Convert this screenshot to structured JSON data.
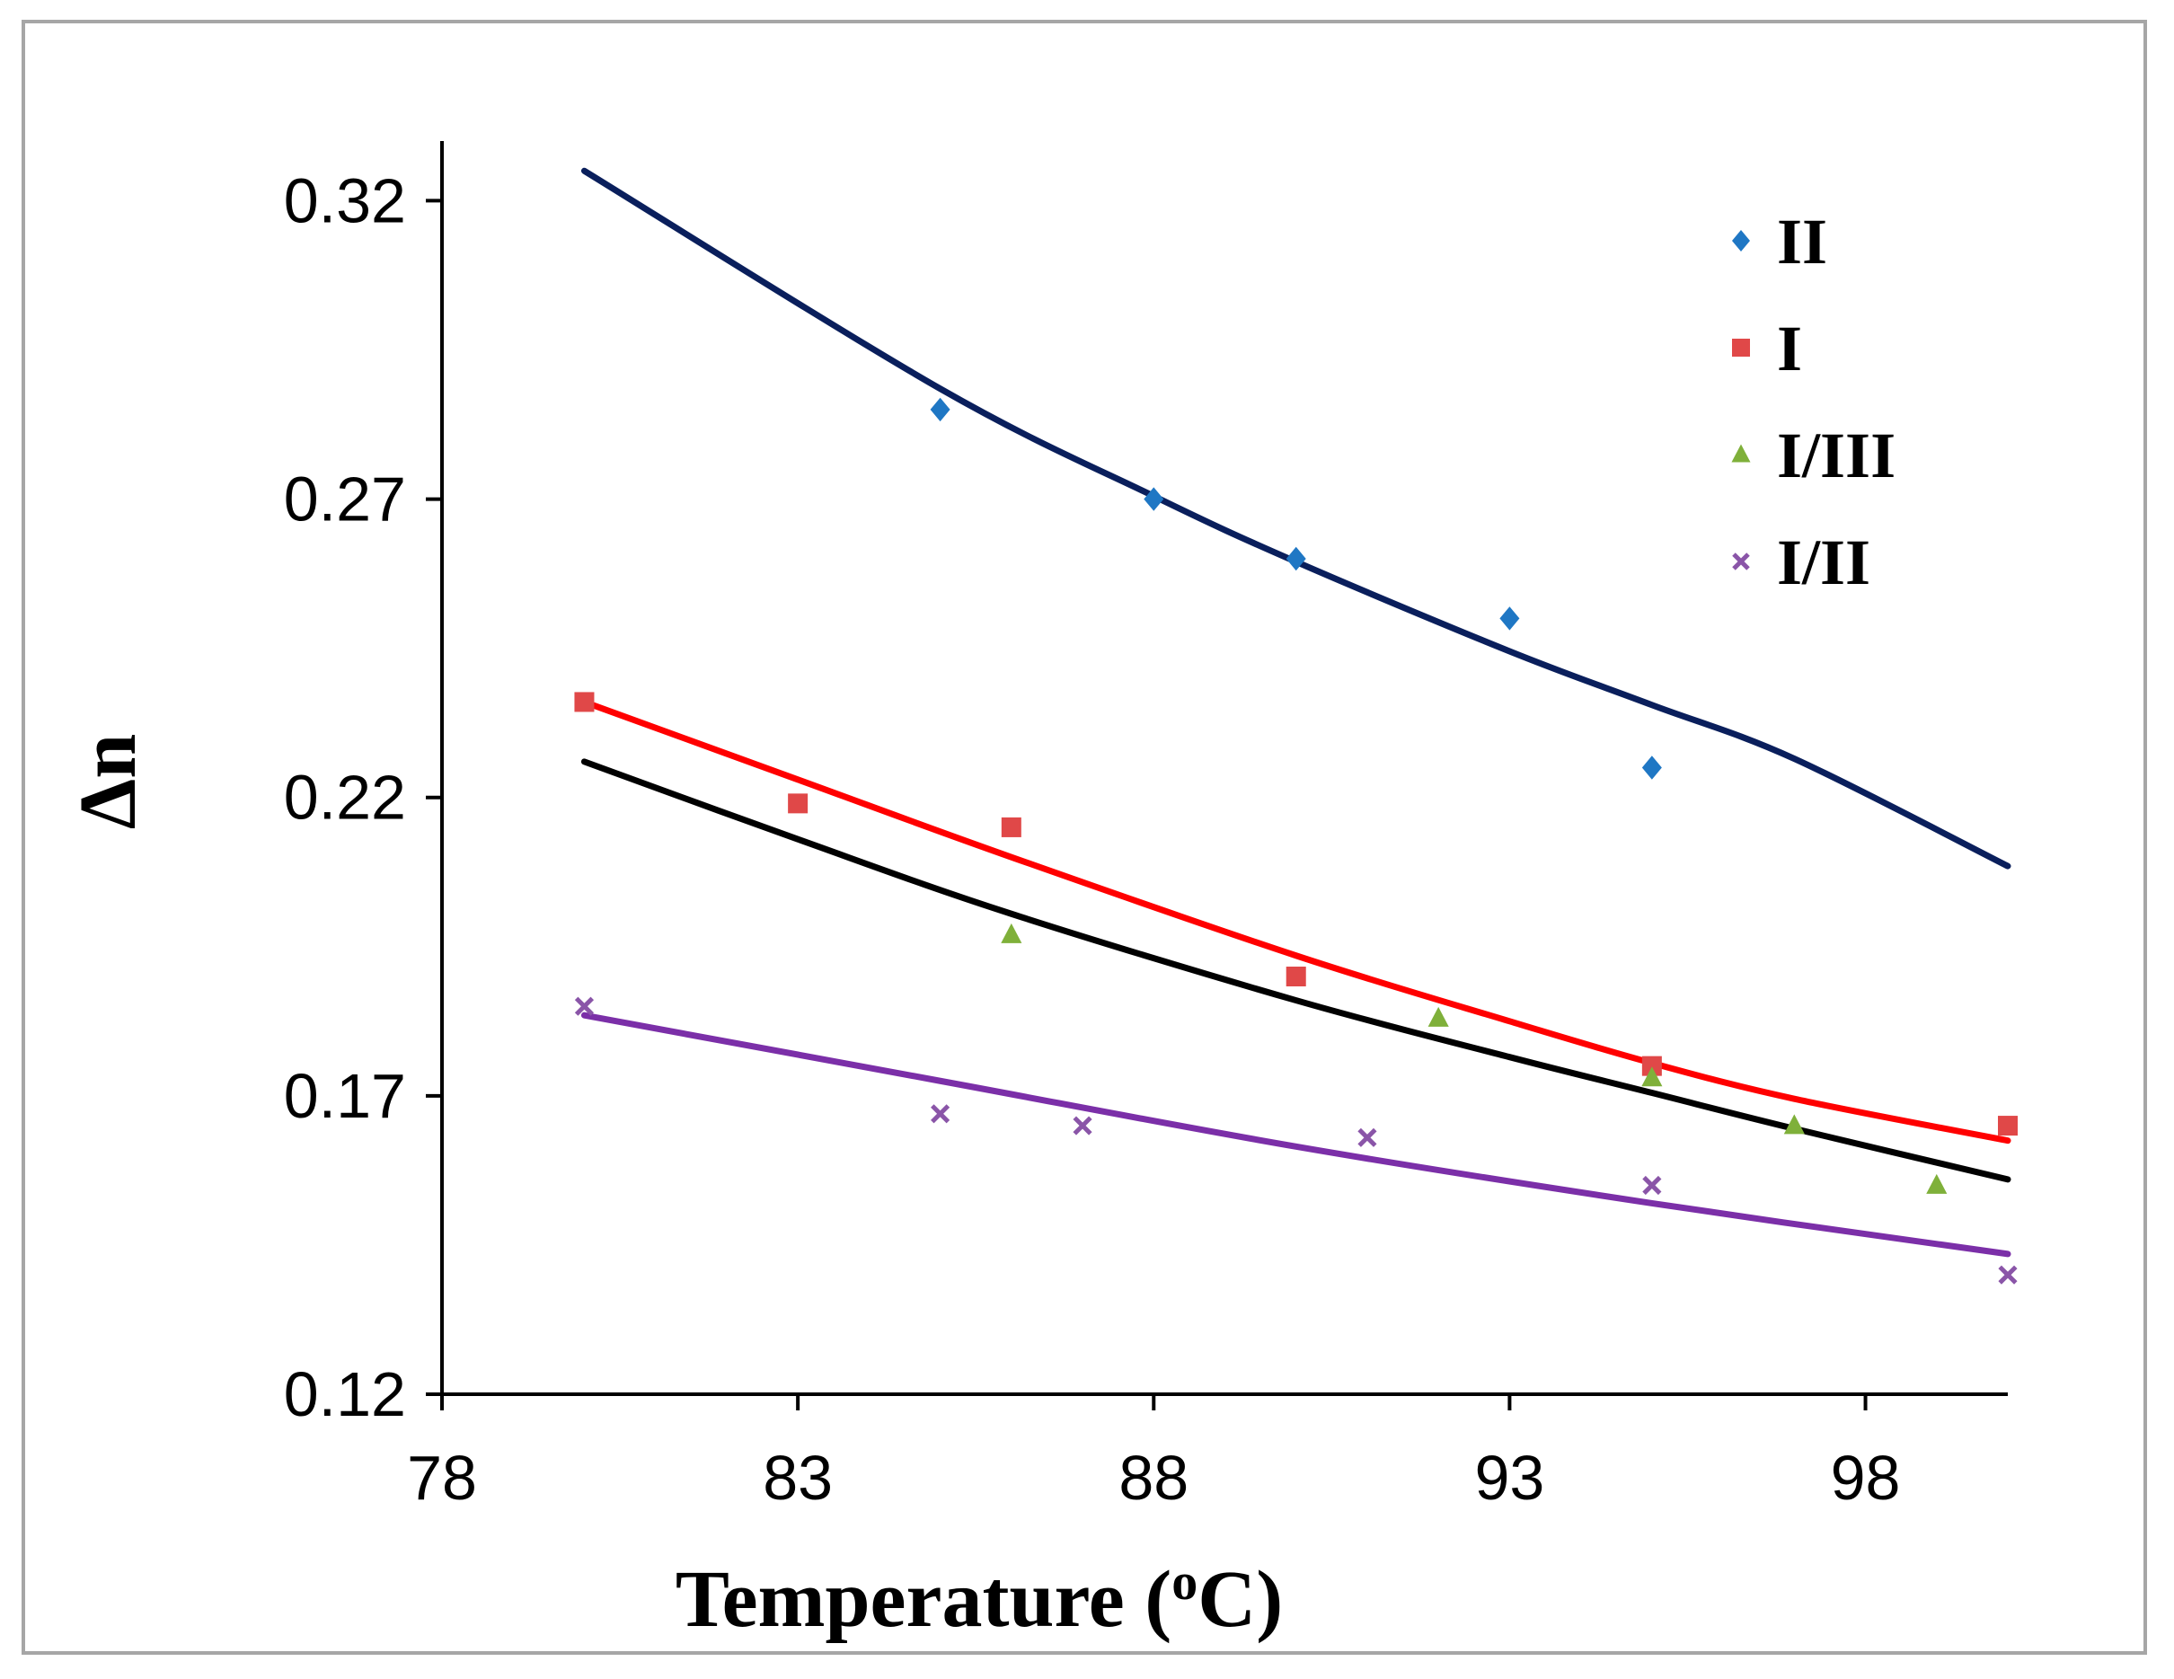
{
  "chart_data": {
    "type": "scatter",
    "title": "",
    "xlabel": "Temperature (",
    "xlabel_superscript": "o",
    "xlabel_suffix": "C)",
    "ylabel": "Δn",
    "xlim": [
      78,
      100
    ],
    "ylim": [
      0.12,
      0.33
    ],
    "xticks": [
      78,
      83,
      88,
      93,
      98
    ],
    "xtick_labels": [
      "78",
      "83",
      "88",
      "93",
      "98"
    ],
    "yticks": [
      0.12,
      0.17,
      0.22,
      0.27,
      0.32
    ],
    "ytick_labels": [
      "0.12",
      "0.17",
      "0.22",
      "0.27",
      "0.32"
    ],
    "grid": false,
    "legend_position": "top-right",
    "series": [
      {
        "name": "II",
        "marker": "diamond",
        "color": "#1f77c4",
        "points": [
          [
            85,
            0.285
          ],
          [
            88,
            0.27
          ],
          [
            90,
            0.26
          ],
          [
            93,
            0.25
          ],
          [
            95,
            0.225
          ]
        ],
        "fit": {
          "color": "#0a1f5c",
          "x": [
            80,
            85,
            88,
            90,
            93,
            95,
            97,
            100
          ],
          "y": [
            0.325,
            0.2885,
            0.2705,
            0.2595,
            0.2445,
            0.2355,
            0.2265,
            0.2085
          ]
        }
      },
      {
        "name": "I",
        "marker": "square",
        "color": "#e04848",
        "points": [
          [
            80,
            0.236
          ],
          [
            83,
            0.219
          ],
          [
            86,
            0.215
          ],
          [
            90,
            0.19
          ],
          [
            95,
            0.175
          ],
          [
            100,
            0.165
          ]
        ],
        "fit": {
          "color": "#ff0000",
          "x": [
            80,
            83,
            86,
            90,
            93,
            95,
            97,
            100
          ],
          "y": [
            0.236,
            0.223,
            0.21,
            0.1935,
            0.1825,
            0.1755,
            0.1695,
            0.1625
          ]
        }
      },
      {
        "name": "I/III",
        "marker": "triangle",
        "color": "#7fb03a",
        "points": [
          [
            86,
            0.197
          ],
          [
            92,
            0.183
          ],
          [
            95,
            0.173
          ],
          [
            97,
            0.165
          ],
          [
            99,
            0.155
          ]
        ],
        "fit": {
          "color": "#000000",
          "x": [
            80,
            83,
            86,
            90,
            93,
            95,
            97,
            100
          ],
          "y": [
            0.226,
            0.213,
            0.2005,
            0.186,
            0.1765,
            0.1705,
            0.1645,
            0.156
          ]
        }
      },
      {
        "name": "I/II",
        "marker": "x",
        "color": "#8a55a8",
        "points": [
          [
            80,
            0.185
          ],
          [
            85,
            0.167
          ],
          [
            87,
            0.165
          ],
          [
            91,
            0.163
          ],
          [
            95,
            0.155
          ],
          [
            100,
            0.14
          ]
        ],
        "fit": {
          "color": "#7b2fa8",
          "x": [
            80,
            85,
            90,
            95,
            100
          ],
          "y": [
            0.1835,
            0.1725,
            0.1615,
            0.152,
            0.1435
          ]
        }
      }
    ]
  }
}
